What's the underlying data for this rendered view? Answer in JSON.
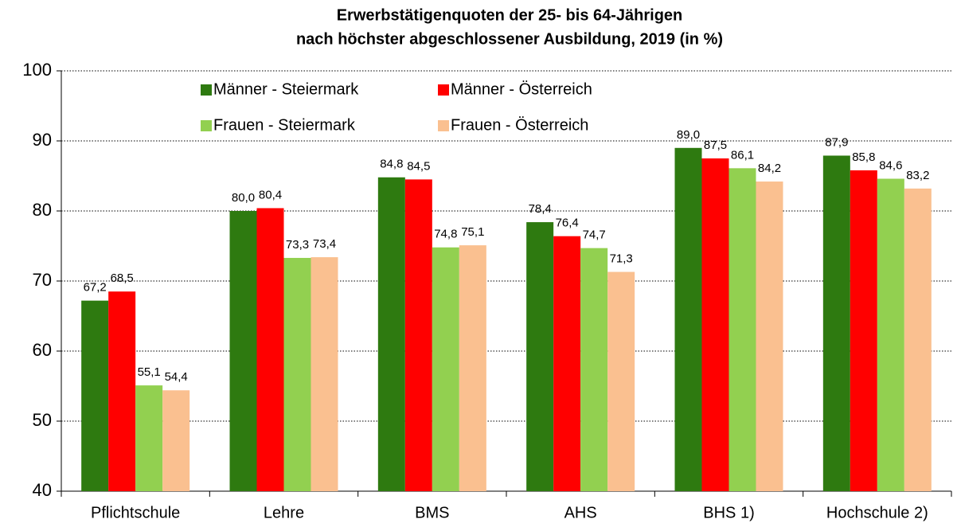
{
  "chart_data": {
    "type": "bar",
    "title": [
      "Erwerbstätigenquoten der 25- bis 64-Jährigen",
      "nach höchster abgeschlossener Ausbildung, 2019 (in %)"
    ],
    "categories": [
      "Pflichtschule",
      "Lehre",
      "BMS",
      "AHS",
      "BHS 1)",
      "Hochschule 2)"
    ],
    "series": [
      {
        "name": "Männer - Steiermark",
        "color": "#2e7a10",
        "values": [
          67.2,
          80.0,
          84.8,
          78.4,
          89.0,
          87.9
        ],
        "value_labels": [
          "67,2",
          "80,0",
          "84,8",
          "78,4",
          "89,0",
          "87,9"
        ]
      },
      {
        "name": "Männer - Österreich",
        "color": "#ff0000",
        "values": [
          68.5,
          80.4,
          84.5,
          76.4,
          87.5,
          85.8
        ],
        "value_labels": [
          "68,5",
          "80,4",
          "84,5",
          "76,4",
          "87,5",
          "85,8"
        ]
      },
      {
        "name": "Frauen - Steiermark",
        "color": "#92d050",
        "values": [
          55.1,
          73.3,
          74.8,
          74.7,
          86.1,
          84.6
        ],
        "value_labels": [
          "55,1",
          "73,3",
          "74,8",
          "74,7",
          "86,1",
          "84,6"
        ]
      },
      {
        "name": "Frauen - Österreich",
        "color": "#fac090",
        "values": [
          54.4,
          73.4,
          75.1,
          71.3,
          84.2,
          83.2
        ],
        "value_labels": [
          "54,4",
          "73,4",
          "75,1",
          "71,3",
          "84,2",
          "83,2"
        ]
      }
    ],
    "ylim": [
      40,
      100
    ],
    "yticks": [
      40,
      50,
      60,
      70,
      80,
      90,
      100
    ],
    "grid": true,
    "legend": "top-left"
  }
}
